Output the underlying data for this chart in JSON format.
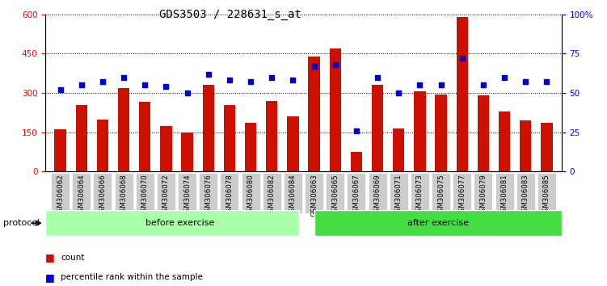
{
  "title": "GDS3503 / 228631_s_at",
  "categories": [
    "GSM306062",
    "GSM306064",
    "GSM306066",
    "GSM306068",
    "GSM306070",
    "GSM306072",
    "GSM306074",
    "GSM306076",
    "GSM306078",
    "GSM306080",
    "GSM306082",
    "GSM306084",
    "GSM306063",
    "GSM306065",
    "GSM306067",
    "GSM306069",
    "GSM306071",
    "GSM306073",
    "GSM306075",
    "GSM306077",
    "GSM306079",
    "GSM306081",
    "GSM306083",
    "GSM306085"
  ],
  "bar_values": [
    160,
    255,
    200,
    320,
    265,
    175,
    148,
    330,
    255,
    185,
    270,
    210,
    440,
    470,
    75,
    330,
    165,
    305,
    295,
    590,
    290,
    230,
    195,
    185
  ],
  "dot_values": [
    52,
    55,
    57,
    60,
    55,
    54,
    50,
    62,
    58,
    57,
    60,
    58,
    67,
    68,
    26,
    60,
    50,
    55,
    55,
    72,
    55,
    60,
    57,
    57
  ],
  "bar_color": "#CC1100",
  "dot_color": "#0000CC",
  "ylim_left": [
    0,
    600
  ],
  "ylim_right": [
    0,
    100
  ],
  "yticks_left": [
    0,
    150,
    300,
    450,
    600
  ],
  "yticks_right": [
    0,
    25,
    50,
    75,
    100
  ],
  "ytick_labels_right": [
    "0",
    "25",
    "50",
    "75",
    "100%"
  ],
  "before_exercise_count": 12,
  "after_exercise_count": 12,
  "protocol_label": "protocol",
  "before_label": "before exercise",
  "after_label": "after exercise",
  "legend_count": "count",
  "legend_percentile": "percentile rank within the sample",
  "bar_width": 0.55,
  "title_fontsize": 10,
  "tick_fontsize": 7.5,
  "before_color": "#AAFFAA",
  "after_color": "#44DD44"
}
